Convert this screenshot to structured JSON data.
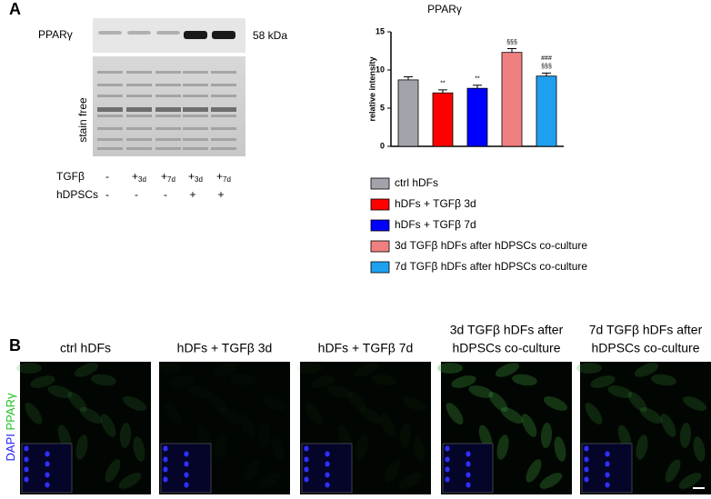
{
  "panel_a": {
    "label": "A",
    "blot": {
      "protein": "PPARγ",
      "size": "58 kDa",
      "loading": "stain free",
      "rows": [
        {
          "label": "TGFβ",
          "lanes": [
            "-",
            {
              "sign": "+",
              "sub": "3d"
            },
            {
              "sign": "+",
              "sub": "7d"
            },
            {
              "sign": "+",
              "sub": "3d"
            },
            {
              "sign": "+",
              "sub": "7d"
            }
          ]
        },
        {
          "label": "hDPSCs",
          "lanes": [
            "-",
            "-",
            "-",
            "+",
            "+"
          ]
        }
      ]
    }
  },
  "chart_data": {
    "type": "bar",
    "title": "PPARγ",
    "y_label": "relative intensity",
    "categories": [
      "ctrl hDFs",
      "hDFs + TGFβ 3d",
      "hDFs + TGFβ 7d",
      "3d TGFβ hDFs after hDPSCs co-culture",
      "7d TGFβ hDFs after hDPSCs co-culture"
    ],
    "values": [
      8.7,
      7.0,
      7.6,
      12.3,
      9.2
    ],
    "errors": [
      0.4,
      0.4,
      0.4,
      0.5,
      0.4
    ],
    "colors": [
      "#a3a3ab",
      "#ff0000",
      "#0000ff",
      "#f08080",
      "#1ea0f0"
    ],
    "annotations": [
      null,
      [
        "**"
      ],
      [
        "**"
      ],
      [
        "§§§"
      ],
      [
        "###",
        "§§§"
      ]
    ],
    "ylim": [
      0,
      15
    ],
    "yticks": [
      0,
      5,
      10,
      15
    ]
  },
  "panel_b": {
    "label": "B",
    "channels": [
      "DAPI",
      "PPARγ"
    ],
    "columns": [
      [
        "ctrl hDFs"
      ],
      [
        "hDFs + TGFβ 3d"
      ],
      [
        "hDFs + TGFβ 7d"
      ],
      [
        "3d TGFβ hDFs after",
        "hDPSCs co-culture"
      ],
      [
        "7d TGFβ hDFs after",
        "hDPSCs co-culture"
      ]
    ]
  }
}
